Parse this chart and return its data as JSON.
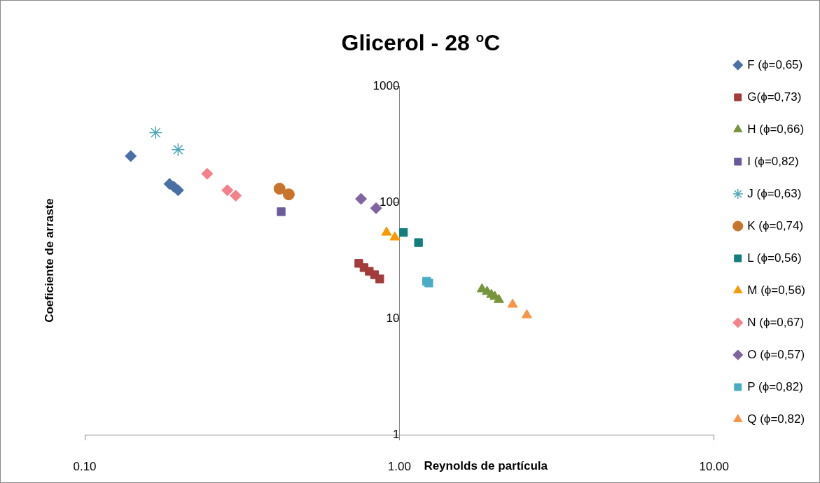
{
  "chart_data": {
    "type": "scatter",
    "title": "Glicerol - 28 $^{o}$C",
    "xlabel": "Reynolds de partícula",
    "ylabel": "Coeficiente de arraste",
    "log": "xy",
    "grid": false,
    "legend": "right",
    "xlim": [
      0.1,
      10
    ],
    "xticks": [
      {
        "value": 0.1,
        "label": "0.10"
      },
      {
        "value": 1,
        "label": "1.00"
      },
      {
        "value": 10,
        "label": "10.00"
      }
    ],
    "ylim": [
      1,
      1000
    ],
    "yticks": [
      1,
      10,
      100,
      1000
    ],
    "series": [
      {
        "name": "F (ϕ=0,65)",
        "color": "#4a6fa5",
        "marker": "diamond",
        "x": [
          0.14,
          0.186,
          0.192,
          0.198
        ],
        "values": [
          250,
          144,
          136,
          127
        ]
      },
      {
        "name": "G(ϕ=0,73)",
        "color": "#a33b3b",
        "marker": "square",
        "x": [
          0.743,
          0.772,
          0.802,
          0.834,
          0.866
        ],
        "values": [
          29.8,
          27.4,
          25.5,
          23.8,
          21.9
        ]
      },
      {
        "name": "H (ϕ=0,66)",
        "color": "#77953c",
        "marker": "triangle",
        "x": [
          1.83,
          1.9,
          1.96,
          2.01,
          2.07
        ],
        "values": [
          17.9,
          17,
          16,
          15.4,
          14.5
        ]
      },
      {
        "name": "I (ϕ=0,82)",
        "color": "#6a5a9c",
        "marker": "square",
        "x": [
          0.421
        ],
        "values": [
          83
        ]
      },
      {
        "name": "J (ϕ=0,63)",
        "color": "#4aa7b8",
        "marker": "cross",
        "x": [
          0.168,
          0.198
        ],
        "values": [
          397,
          284
        ]
      },
      {
        "name": "K (ϕ=0,74)",
        "color": "#c8742c",
        "marker": "circle",
        "x": [
          0.416,
          0.445
        ],
        "values": [
          131,
          117
        ]
      },
      {
        "name": "L (ϕ=0,56)",
        "color": "#127e7e",
        "marker": "square",
        "x": [
          1.03,
          1.15
        ],
        "values": [
          55,
          45
        ]
      },
      {
        "name": "M (ϕ=0,56)",
        "color": "#f79a00",
        "marker": "triangle",
        "x": [
          0.91,
          0.967
        ],
        "values": [
          55,
          50
        ]
      },
      {
        "name": "N (ϕ=0,67)",
        "color": "#f4818a",
        "marker": "diamond",
        "x": [
          0.245,
          0.284,
          0.302
        ],
        "values": [
          176,
          127,
          114
        ]
      },
      {
        "name": "O (ϕ=0,57)",
        "color": "#8064a2",
        "marker": "diamond",
        "x": [
          0.755,
          0.843
        ],
        "values": [
          107,
          89
        ]
      },
      {
        "name": "P (ϕ=0,82)",
        "color": "#4bacc6",
        "marker": "square",
        "x": [
          1.22,
          1.24
        ],
        "values": [
          20.9,
          20.2
        ]
      },
      {
        "name": "Q (ϕ=0,82)",
        "color": "#f79646",
        "marker": "triangle",
        "x": [
          2.29,
          2.54
        ],
        "values": [
          13.2,
          10.7
        ]
      }
    ]
  }
}
